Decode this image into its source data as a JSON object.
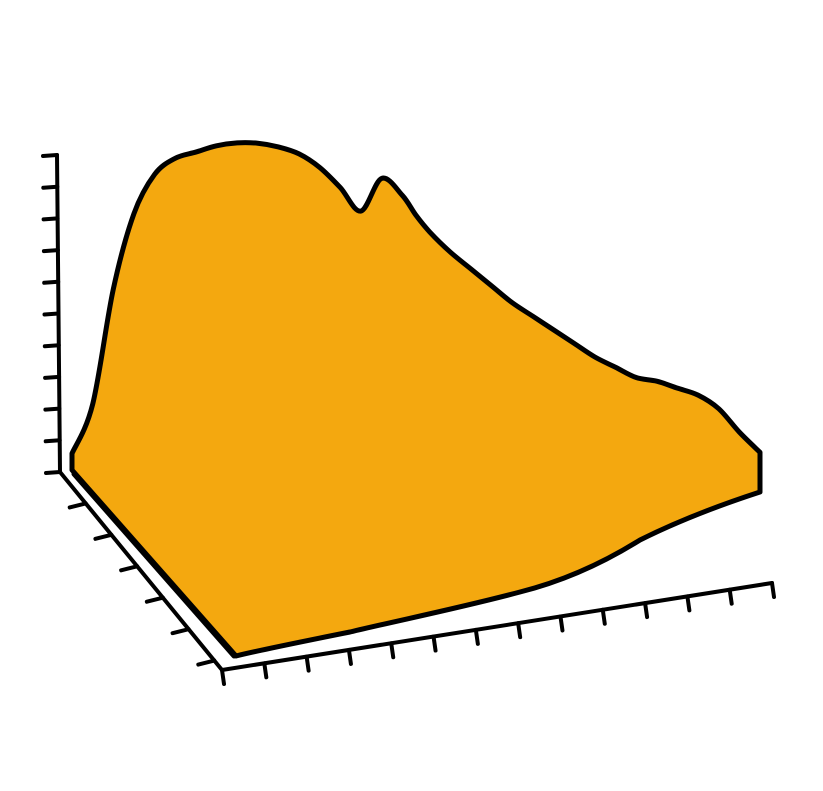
{
  "chart_data": {
    "type": "area",
    "style": "hand-drawn 3d surface",
    "title": "",
    "xlabel": "",
    "ylabel": "",
    "zlabel": "",
    "legend": "none",
    "grid": false,
    "fill_color": "#F4A80F",
    "line_color": "#000000",
    "tick_counts": {
      "vertical": 11,
      "depth": 6,
      "horizontal": 14
    },
    "ridge_profile": {
      "x": [
        0,
        3,
        6,
        9,
        12,
        15,
        18,
        21,
        24,
        27,
        30,
        33,
        36,
        39,
        42,
        45,
        48,
        50,
        52,
        55,
        58,
        61,
        64,
        67,
        70,
        73,
        76,
        79,
        82,
        85,
        88,
        91,
        94,
        97,
        100
      ],
      "y": [
        0.05,
        0.2,
        0.55,
        0.78,
        0.9,
        0.95,
        0.97,
        0.99,
        1.0,
        1.0,
        0.99,
        0.97,
        0.93,
        0.87,
        0.8,
        0.9,
        0.85,
        0.79,
        0.74,
        0.68,
        0.63,
        0.58,
        0.53,
        0.49,
        0.45,
        0.41,
        0.37,
        0.34,
        0.31,
        0.3,
        0.28,
        0.26,
        0.22,
        0.15,
        0.09
      ]
    }
  }
}
